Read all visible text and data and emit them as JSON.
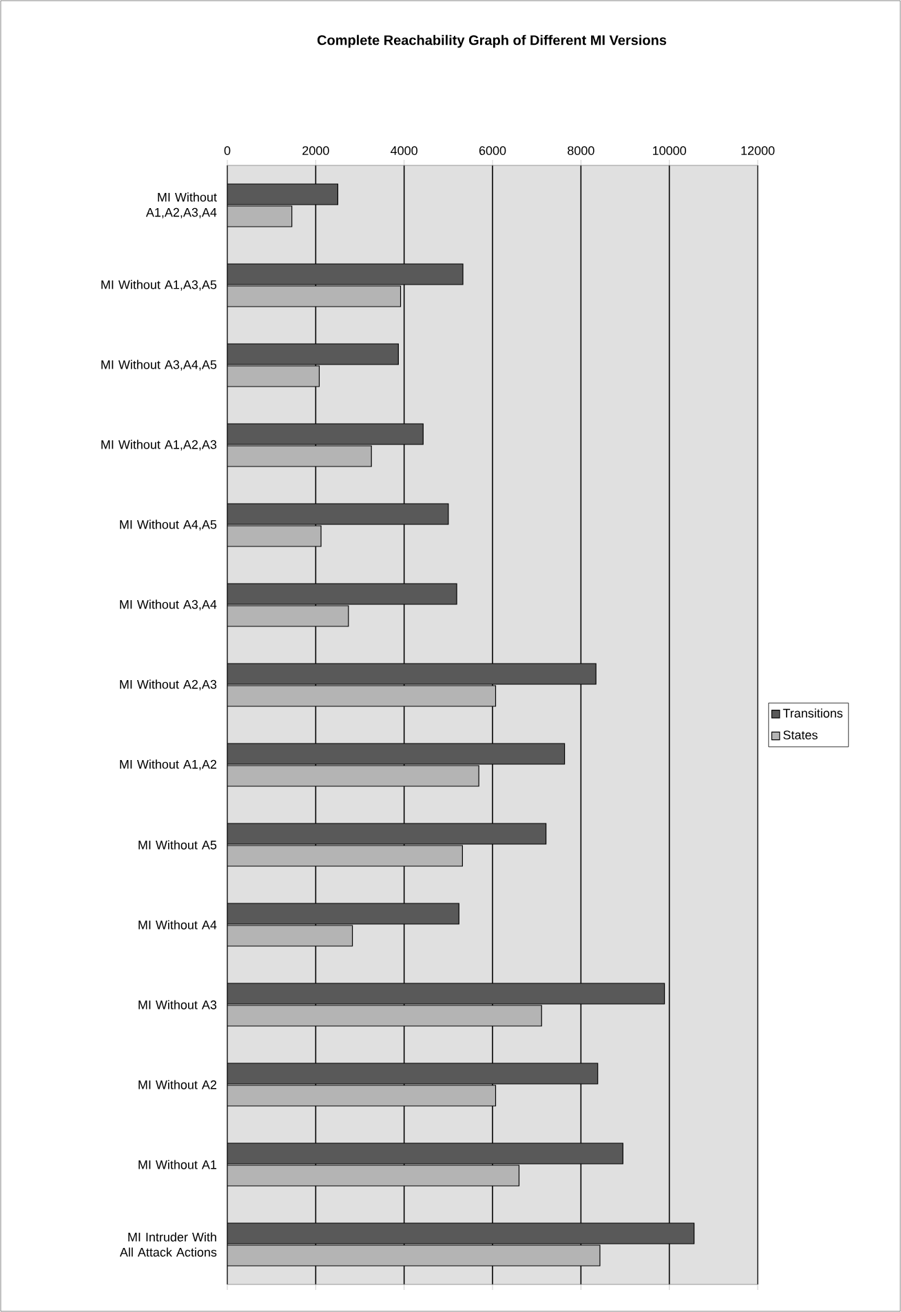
{
  "chart_data": {
    "type": "bar",
    "orientation": "horizontal",
    "title": "Complete Reachability Graph of Different MI Versions",
    "categories": [
      "MI Without A1,A2,A3,A4",
      "MI Without A1,A3,A5",
      "MI Without A3,A4,A5",
      "MI Without A1,A2,A3",
      "MI Without A4,A5",
      "MI Without A3,A4",
      "MI Without A2,A3",
      "MI Without A1,A2",
      "MI Without A5",
      "MI Without A4",
      "MI Without A3",
      "MI Without A2",
      "MI Without A1",
      "MI Intruder With All Attack Actions"
    ],
    "series": [
      {
        "name": "Transitions",
        "color": "#595959",
        "values": [
          2500,
          5330,
          3870,
          4430,
          5000,
          5190,
          8340,
          7630,
          7210,
          5240,
          9890,
          8380,
          8950,
          10560
        ]
      },
      {
        "name": "States",
        "color": "#b4b4b4",
        "values": [
          1460,
          3920,
          2080,
          3260,
          2120,
          2740,
          6070,
          5690,
          5320,
          2830,
          7110,
          6070,
          6600,
          8430
        ]
      }
    ],
    "xlim": [
      0,
      12000
    ],
    "xticks": [
      0,
      2000,
      4000,
      6000,
      8000,
      10000,
      12000
    ],
    "grid": "x",
    "legend": "right"
  }
}
